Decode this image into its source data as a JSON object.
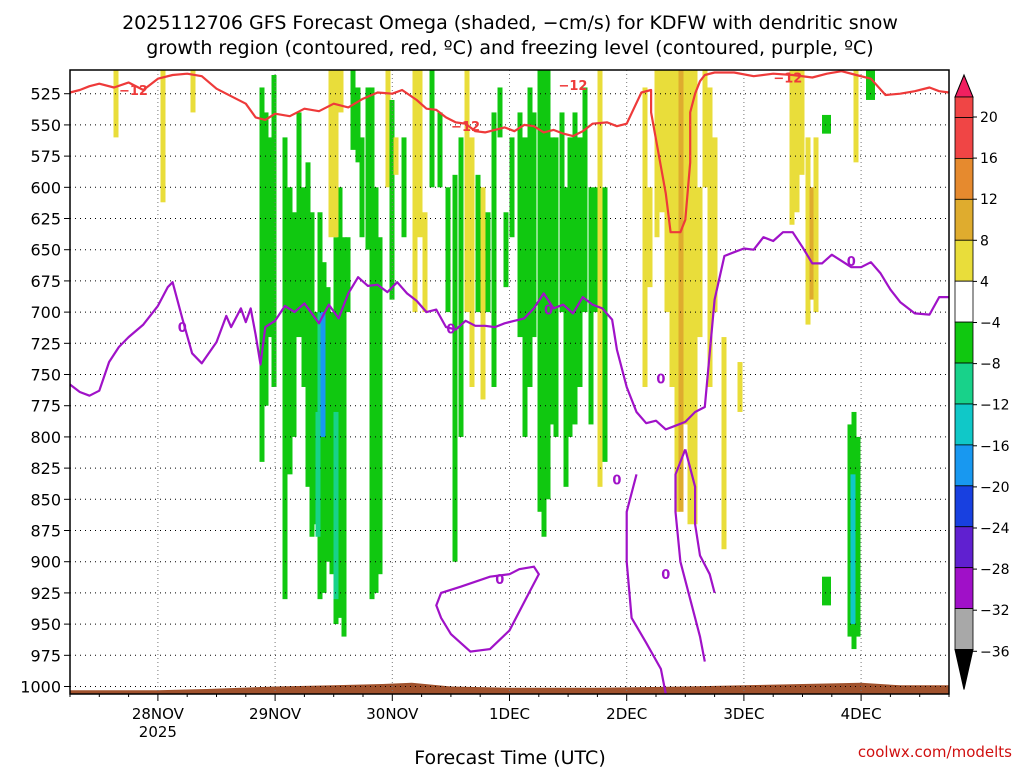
{
  "chart_data": {
    "type": "time-height contour",
    "title_line1": "2025112706 GFS Forecast Omega (shaded, −cm/s) for KDFW with dendritic snow",
    "title_line2": "growth region (contoured, red, ºC) and freezing level (contoured, purple, ºC)",
    "xlabel": "Forecast Time (UTC)",
    "credit": "coolwx.com/modelts",
    "x_days": [
      {
        "label": "28NOV",
        "sub": "2025",
        "t": 0
      },
      {
        "label": "29NOV",
        "t": 24
      },
      {
        "label": "30NOV",
        "t": 48
      },
      {
        "label": "1DEC",
        "t": 72
      },
      {
        "label": "2DEC",
        "t": 96
      },
      {
        "label": "3DEC",
        "t": 120
      },
      {
        "label": "4DEC",
        "t": 144
      }
    ],
    "xlim_hours": [
      -18,
      162
    ],
    "y_levels": [
      525,
      550,
      575,
      600,
      625,
      650,
      675,
      700,
      725,
      750,
      775,
      800,
      825,
      850,
      875,
      900,
      925,
      950,
      975,
      1000
    ],
    "ylim_hpa": [
      506,
      1006
    ],
    "colorbar": {
      "labels": [
        "20",
        "16",
        "12",
        "8",
        "4",
        "−4",
        "−8",
        "−12",
        "−16",
        "−20",
        "−24",
        "−28",
        "−32",
        "−36"
      ],
      "colors": [
        "#f02060",
        "#f04545",
        "#e68a2e",
        "#dfac2e",
        "#e9dd3a",
        "#ffffff",
        "#10c810",
        "#18d28a",
        "#10c8c8",
        "#1898f0",
        "#1840e0",
        "#6020d0",
        "#a010c8",
        "#a8a8a8",
        "#000000"
      ]
    },
    "series": [
      {
        "name": "dendritic snow growth region (-12 ºC)",
        "color": "#ee3a3a",
        "label": "−12",
        "label_points": [
          [
            -5,
            522
          ],
          [
            63,
            551
          ],
          [
            85,
            518
          ],
          [
            129,
            512
          ]
        ],
        "points": [
          [
            -18,
            524
          ],
          [
            -16,
            522
          ],
          [
            -14,
            519
          ],
          [
            -12,
            517
          ],
          [
            -9,
            520
          ],
          [
            -6,
            516
          ],
          [
            -3,
            522
          ],
          [
            0,
            513
          ],
          [
            3,
            510
          ],
          [
            6,
            509
          ],
          [
            9,
            511
          ],
          [
            12,
            521
          ],
          [
            15,
            527
          ],
          [
            18,
            533
          ],
          [
            20,
            544
          ],
          [
            22,
            546
          ],
          [
            24,
            541
          ],
          [
            27,
            543
          ],
          [
            30,
            537
          ],
          [
            33,
            539
          ],
          [
            36,
            533
          ],
          [
            39,
            536
          ],
          [
            42,
            529
          ],
          [
            45,
            524
          ],
          [
            48,
            525
          ],
          [
            50,
            522
          ],
          [
            53,
            530
          ],
          [
            55,
            537
          ],
          [
            57,
            538
          ],
          [
            59,
            544
          ],
          [
            61,
            548
          ],
          [
            63,
            549
          ],
          [
            65,
            555
          ],
          [
            67,
            556
          ],
          [
            69,
            554
          ],
          [
            71,
            552
          ],
          [
            73,
            555
          ],
          [
            75,
            550
          ],
          [
            77,
            551
          ],
          [
            79,
            556
          ],
          [
            81,
            554
          ],
          [
            83,
            557
          ],
          [
            85,
            559
          ],
          [
            87,
            555
          ],
          [
            89,
            549
          ],
          [
            92,
            548
          ],
          [
            94,
            551
          ],
          [
            96,
            549
          ],
          [
            99,
            524
          ],
          [
            101,
            522
          ],
          [
            101,
            540
          ],
          [
            104,
            605
          ],
          [
            105,
            636
          ],
          [
            107,
            636
          ],
          [
            108,
            626
          ],
          [
            109,
            580
          ],
          [
            109,
            540
          ],
          [
            110,
            525
          ],
          [
            111,
            515
          ],
          [
            112,
            510
          ],
          [
            114,
            508
          ],
          [
            118,
            508
          ],
          [
            122,
            511
          ],
          [
            126,
            509
          ],
          [
            130,
            510
          ],
          [
            134,
            512
          ],
          [
            137,
            509
          ],
          [
            140,
            507
          ],
          [
            143,
            510
          ],
          [
            146,
            513
          ],
          [
            149,
            526
          ],
          [
            152,
            525
          ],
          [
            155,
            523
          ],
          [
            158,
            520
          ],
          [
            160,
            523
          ],
          [
            162,
            524
          ]
        ]
      },
      {
        "name": "freezing level (0 ºC)",
        "color": "#a012c8",
        "label": "0",
        "label_points": [
          [
            5,
            712
          ],
          [
            60,
            713
          ],
          [
            80,
            698
          ],
          [
            103,
            753
          ],
          [
            142,
            659
          ],
          [
            94,
            834
          ],
          [
            104,
            910
          ],
          [
            70,
            914
          ]
        ],
        "points": [
          [
            -18,
            758
          ],
          [
            -16,
            764
          ],
          [
            -14,
            767
          ],
          [
            -12,
            763
          ],
          [
            -10,
            740
          ],
          [
            -8,
            728
          ],
          [
            -6,
            720
          ],
          [
            -3,
            710
          ],
          [
            0,
            695
          ],
          [
            2,
            680
          ],
          [
            3,
            676
          ],
          [
            5,
            705
          ],
          [
            7,
            733
          ],
          [
            9,
            741
          ],
          [
            12,
            724
          ],
          [
            14,
            703
          ],
          [
            15,
            712
          ],
          [
            17,
            697
          ],
          [
            18,
            708
          ],
          [
            19,
            697
          ],
          [
            20,
            718
          ],
          [
            21,
            742
          ],
          [
            22,
            712
          ],
          [
            24,
            707
          ],
          [
            26,
            695
          ],
          [
            28,
            700
          ],
          [
            30,
            693
          ],
          [
            33,
            709
          ],
          [
            35,
            694
          ],
          [
            37,
            705
          ],
          [
            39,
            685
          ],
          [
            41,
            672
          ],
          [
            43,
            679
          ],
          [
            45,
            678
          ],
          [
            47,
            684
          ],
          [
            49,
            676
          ],
          [
            51,
            685
          ],
          [
            53,
            691
          ],
          [
            55,
            700
          ],
          [
            57,
            698
          ],
          [
            59,
            712
          ],
          [
            61,
            714
          ],
          [
            63,
            707
          ],
          [
            65,
            711
          ],
          [
            67,
            711
          ],
          [
            69,
            712
          ],
          [
            71,
            709
          ],
          [
            73,
            707
          ],
          [
            75,
            705
          ],
          [
            77,
            697
          ],
          [
            79,
            685
          ],
          [
            81,
            697
          ],
          [
            83,
            694
          ],
          [
            85,
            701
          ],
          [
            87,
            688
          ],
          [
            89,
            694
          ],
          [
            91,
            697
          ],
          [
            93,
            706
          ],
          [
            94,
            730
          ],
          [
            96,
            760
          ],
          [
            98,
            780
          ],
          [
            100,
            789
          ],
          [
            102,
            787
          ],
          [
            104,
            794
          ],
          [
            106,
            791
          ],
          [
            108,
            788
          ],
          [
            110,
            780
          ],
          [
            112,
            776
          ],
          [
            114,
            690
          ],
          [
            116,
            655
          ],
          [
            118,
            652
          ],
          [
            120,
            649
          ],
          [
            122,
            650
          ],
          [
            124,
            640
          ],
          [
            126,
            643
          ],
          [
            128,
            636
          ],
          [
            130,
            636
          ],
          [
            132,
            648
          ],
          [
            134,
            661
          ],
          [
            136,
            661
          ],
          [
            138,
            654
          ],
          [
            140,
            659
          ],
          [
            142,
            664
          ],
          [
            144,
            664
          ],
          [
            146,
            660
          ],
          [
            148,
            669
          ],
          [
            150,
            682
          ],
          [
            152,
            692
          ],
          [
            155,
            701
          ],
          [
            158,
            702
          ],
          [
            160,
            688
          ],
          [
            162,
            688
          ]
        ]
      }
    ]
  }
}
